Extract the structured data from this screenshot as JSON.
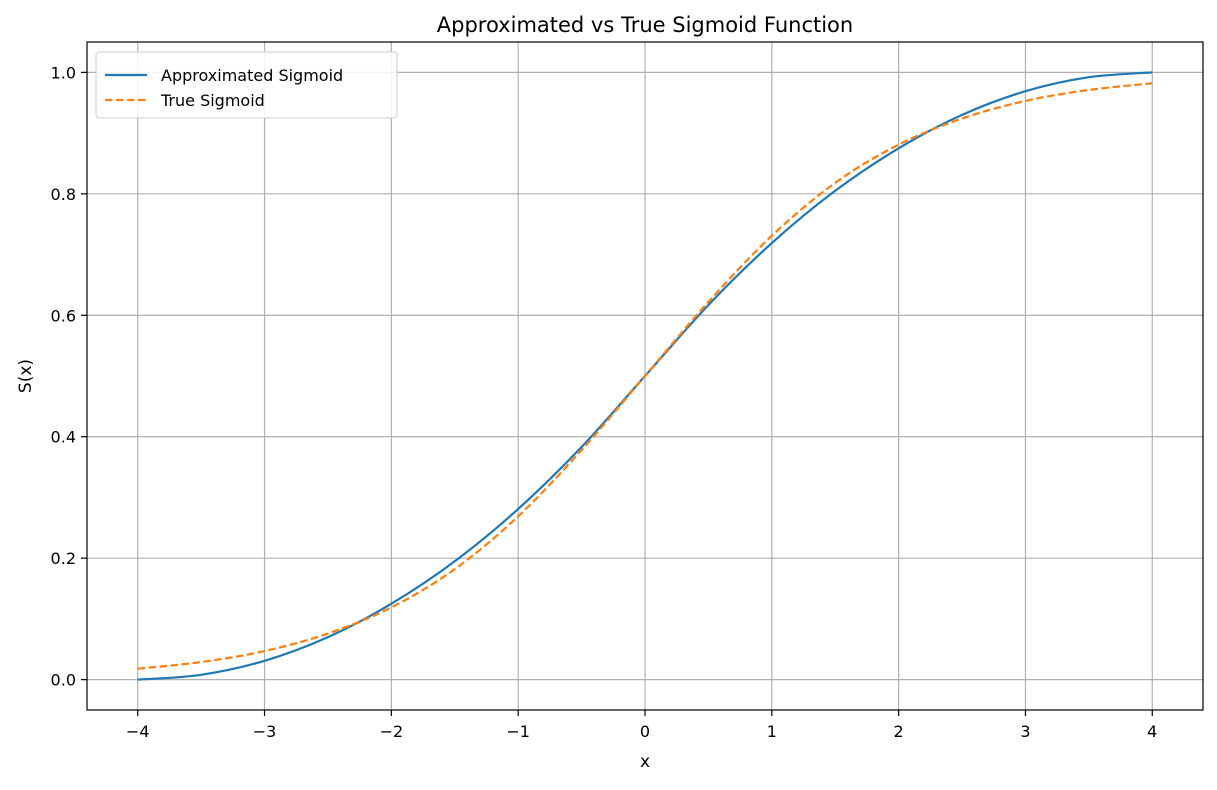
{
  "chart_data": {
    "type": "line",
    "title": "Approximated vs True Sigmoid Function",
    "xlabel": "x",
    "ylabel": "S(x)",
    "xlim": [
      -4.4,
      4.4
    ],
    "ylim": [
      -0.05,
      1.05
    ],
    "x_ticks": [
      -4,
      -3,
      -2,
      -1,
      0,
      1,
      2,
      3,
      4
    ],
    "x_tick_labels": [
      "−4",
      "−3",
      "−2",
      "−1",
      "0",
      "1",
      "2",
      "3",
      "4"
    ],
    "y_ticks": [
      0.0,
      0.2,
      0.4,
      0.6,
      0.8,
      1.0
    ],
    "y_tick_labels": [
      "0.0",
      "0.2",
      "0.4",
      "0.6",
      "0.8",
      "1.0"
    ],
    "grid": true,
    "legend_position": "top-left",
    "x": [
      -4,
      -3.5,
      -3,
      -2.5,
      -2,
      -1.5,
      -1,
      -0.5,
      0,
      0.5,
      1,
      1.5,
      2,
      2.5,
      3,
      3.5,
      4
    ],
    "series": [
      {
        "name": "Approximated Sigmoid",
        "color": "#1f77b4",
        "style": "solid",
        "values": [
          0.0,
          0.008,
          0.031,
          0.07,
          0.125,
          0.195,
          0.281,
          0.383,
          0.5,
          0.617,
          0.719,
          0.805,
          0.875,
          0.93,
          0.969,
          0.992,
          1.0
        ]
      },
      {
        "name": "True Sigmoid",
        "color": "#ff7f0e",
        "style": "dashed",
        "values": [
          0.018,
          0.029,
          0.047,
          0.076,
          0.119,
          0.182,
          0.269,
          0.378,
          0.5,
          0.622,
          0.731,
          0.818,
          0.881,
          0.924,
          0.953,
          0.971,
          0.982
        ]
      }
    ]
  }
}
